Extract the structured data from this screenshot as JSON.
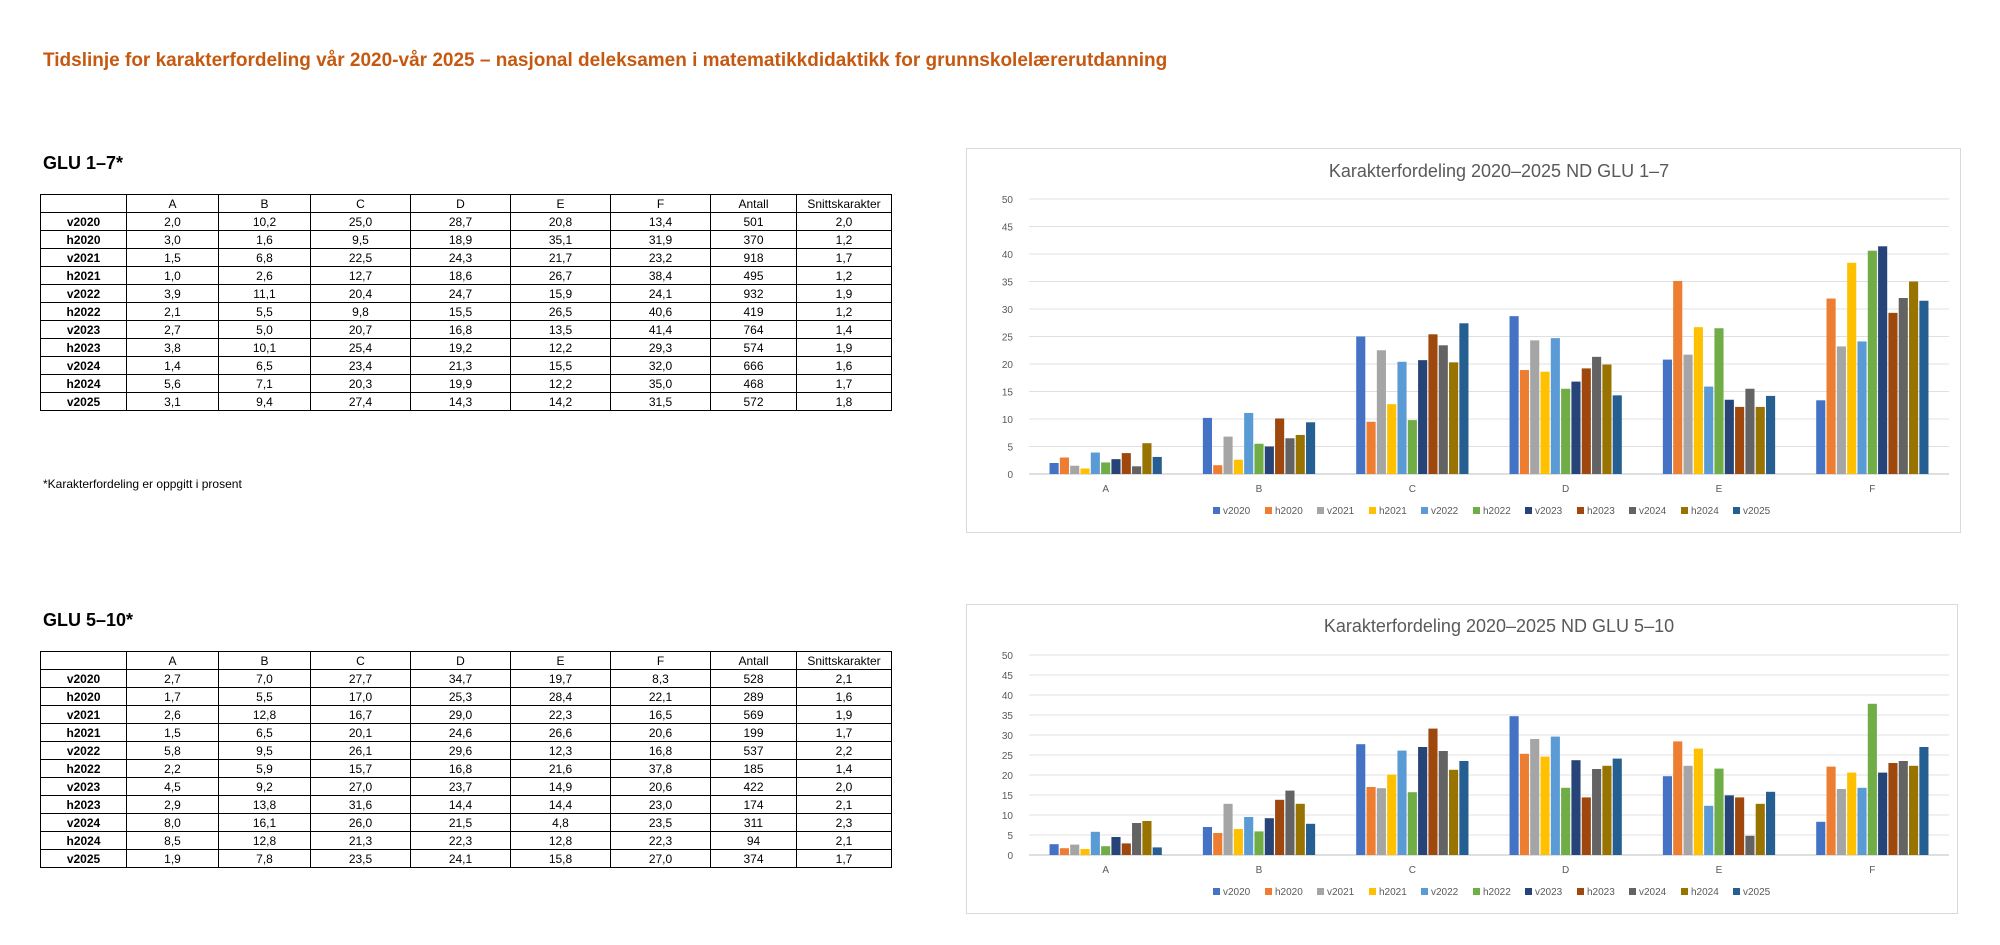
{
  "page": {
    "title": "Tidslinje for karakterfordeling vår 2020-vår 2025 – nasjonal deleksamen i matematikkdidaktikk for grunnskolelærerutdanning",
    "footnote": "*Karakterfordeling er oppgitt i prosent"
  },
  "colors": [
    "#4472c4",
    "#ed7d31",
    "#a5a5a5",
    "#ffc000",
    "#5b9bd5",
    "#70ad47",
    "#264478",
    "#9e480e",
    "#636363",
    "#997300",
    "#255e91"
  ],
  "sections": [
    {
      "title": "GLU 1–7*",
      "table": {
        "headers": [
          "",
          "A",
          "B",
          "C",
          "D",
          "E",
          "F",
          "Antall",
          "Snittskarakter"
        ],
        "rows": [
          [
            "v2020",
            "2,0",
            "10,2",
            "25,0",
            "28,7",
            "20,8",
            "13,4",
            "501",
            "2,0"
          ],
          [
            "h2020",
            "3,0",
            "1,6",
            "9,5",
            "18,9",
            "35,1",
            "31,9",
            "370",
            "1,2"
          ],
          [
            "v2021",
            "1,5",
            "6,8",
            "22,5",
            "24,3",
            "21,7",
            "23,2",
            "918",
            "1,7"
          ],
          [
            "h2021",
            "1,0",
            "2,6",
            "12,7",
            "18,6",
            "26,7",
            "38,4",
            "495",
            "1,2"
          ],
          [
            "v2022",
            "3,9",
            "11,1",
            "20,4",
            "24,7",
            "15,9",
            "24,1",
            "932",
            "1,9"
          ],
          [
            "h2022",
            "2,1",
            "5,5",
            "9,8",
            "15,5",
            "26,5",
            "40,6",
            "419",
            "1,2"
          ],
          [
            "v2023",
            "2,7",
            "5,0",
            "20,7",
            "16,8",
            "13,5",
            "41,4",
            "764",
            "1,4"
          ],
          [
            "h2023",
            "3,8",
            "10,1",
            "25,4",
            "19,2",
            "12,2",
            "29,3",
            "574",
            "1,9"
          ],
          [
            "v2024",
            "1,4",
            "6,5",
            "23,4",
            "21,3",
            "15,5",
            "32,0",
            "666",
            "1,6"
          ],
          [
            "h2024",
            "5,6",
            "7,1",
            "20,3",
            "19,9",
            "12,2",
            "35,0",
            "468",
            "1,7"
          ],
          [
            "v2025",
            "3,1",
            "9,4",
            "27,4",
            "14,3",
            "14,2",
            "31,5",
            "572",
            "1,8"
          ]
        ]
      }
    },
    {
      "title": "GLU 5–10*",
      "table": {
        "headers": [
          "",
          "A",
          "B",
          "C",
          "D",
          "E",
          "F",
          "Antall",
          "Snittskarakter"
        ],
        "rows": [
          [
            "v2020",
            "2,7",
            "7,0",
            "27,7",
            "34,7",
            "19,7",
            "8,3",
            "528",
            "2,1"
          ],
          [
            "h2020",
            "1,7",
            "5,5",
            "17,0",
            "25,3",
            "28,4",
            "22,1",
            "289",
            "1,6"
          ],
          [
            "v2021",
            "2,6",
            "12,8",
            "16,7",
            "29,0",
            "22,3",
            "16,5",
            "569",
            "1,9"
          ],
          [
            "h2021",
            "1,5",
            "6,5",
            "20,1",
            "24,6",
            "26,6",
            "20,6",
            "199",
            "1,7"
          ],
          [
            "v2022",
            "5,8",
            "9,5",
            "26,1",
            "29,6",
            "12,3",
            "16,8",
            "537",
            "2,2"
          ],
          [
            "h2022",
            "2,2",
            "5,9",
            "15,7",
            "16,8",
            "21,6",
            "37,8",
            "185",
            "1,4"
          ],
          [
            "v2023",
            "4,5",
            "9,2",
            "27,0",
            "23,7",
            "14,9",
            "20,6",
            "422",
            "2,0"
          ],
          [
            "h2023",
            "2,9",
            "13,8",
            "31,6",
            "14,4",
            "14,4",
            "23,0",
            "174",
            "2,1"
          ],
          [
            "v2024",
            "8,0",
            "16,1",
            "26,0",
            "21,5",
            "4,8",
            "23,5",
            "311",
            "2,3"
          ],
          [
            "h2024",
            "8,5",
            "12,8",
            "21,3",
            "22,3",
            "12,8",
            "22,3",
            "94",
            "2,1"
          ],
          [
            "v2025",
            "1,9",
            "7,8",
            "23,5",
            "24,1",
            "15,8",
            "27,0",
            "374",
            "1,7"
          ]
        ]
      }
    }
  ],
  "chart_data": [
    {
      "type": "bar",
      "title": "Karakterfordeling 2020–2025 ND GLU 1–7",
      "categories": [
        "A",
        "B",
        "C",
        "D",
        "E",
        "F"
      ],
      "ylim": [
        0,
        50
      ],
      "yticks": [
        0,
        5,
        10,
        15,
        20,
        25,
        30,
        35,
        40,
        45,
        50
      ],
      "grid": true,
      "legend": "bottom",
      "series": [
        {
          "name": "v2020",
          "values": [
            2.0,
            10.2,
            25.0,
            28.7,
            20.8,
            13.4
          ]
        },
        {
          "name": "h2020",
          "values": [
            3.0,
            1.6,
            9.5,
            18.9,
            35.1,
            31.9
          ]
        },
        {
          "name": "v2021",
          "values": [
            1.5,
            6.8,
            22.5,
            24.3,
            21.7,
            23.2
          ]
        },
        {
          "name": "h2021",
          "values": [
            1.0,
            2.6,
            12.7,
            18.6,
            26.7,
            38.4
          ]
        },
        {
          "name": "v2022",
          "values": [
            3.9,
            11.1,
            20.4,
            24.7,
            15.9,
            24.1
          ]
        },
        {
          "name": "h2022",
          "values": [
            2.1,
            5.5,
            9.8,
            15.5,
            26.5,
            40.6
          ]
        },
        {
          "name": "v2023",
          "values": [
            2.7,
            5.0,
            20.7,
            16.8,
            13.5,
            41.4
          ]
        },
        {
          "name": "h2023",
          "values": [
            3.8,
            10.1,
            25.4,
            19.2,
            12.2,
            29.3
          ]
        },
        {
          "name": "v2024",
          "values": [
            1.4,
            6.5,
            23.4,
            21.3,
            15.5,
            32.0
          ]
        },
        {
          "name": "h2024",
          "values": [
            5.6,
            7.1,
            20.3,
            19.9,
            12.2,
            35.0
          ]
        },
        {
          "name": "v2025",
          "values": [
            3.1,
            9.4,
            27.4,
            14.3,
            14.2,
            31.5
          ]
        }
      ]
    },
    {
      "type": "bar",
      "title": "Karakterfordeling 2020–2025 ND GLU 5–10",
      "categories": [
        "A",
        "B",
        "C",
        "D",
        "E",
        "F"
      ],
      "ylim": [
        0,
        50
      ],
      "yticks": [
        0,
        5,
        10,
        15,
        20,
        25,
        30,
        35,
        40,
        45,
        50
      ],
      "grid": true,
      "legend": "bottom",
      "series": [
        {
          "name": "v2020",
          "values": [
            2.7,
            7.0,
            27.7,
            34.7,
            19.7,
            8.3
          ]
        },
        {
          "name": "h2020",
          "values": [
            1.7,
            5.5,
            17.0,
            25.3,
            28.4,
            22.1
          ]
        },
        {
          "name": "v2021",
          "values": [
            2.6,
            12.8,
            16.7,
            29.0,
            22.3,
            16.5
          ]
        },
        {
          "name": "h2021",
          "values": [
            1.5,
            6.5,
            20.1,
            24.6,
            26.6,
            20.6
          ]
        },
        {
          "name": "v2022",
          "values": [
            5.8,
            9.5,
            26.1,
            29.6,
            12.3,
            16.8
          ]
        },
        {
          "name": "h2022",
          "values": [
            2.2,
            5.9,
            15.7,
            16.8,
            21.6,
            37.8
          ]
        },
        {
          "name": "v2023",
          "values": [
            4.5,
            9.2,
            27.0,
            23.7,
            14.9,
            20.6
          ]
        },
        {
          "name": "h2023",
          "values": [
            2.9,
            13.8,
            31.6,
            14.4,
            14.4,
            23.0
          ]
        },
        {
          "name": "v2024",
          "values": [
            8.0,
            16.1,
            26.0,
            21.5,
            4.8,
            23.5
          ]
        },
        {
          "name": "h2024",
          "values": [
            8.5,
            12.8,
            21.3,
            22.3,
            12.8,
            22.3
          ]
        },
        {
          "name": "v2025",
          "values": [
            1.9,
            7.8,
            23.5,
            24.1,
            15.8,
            27.0
          ]
        }
      ]
    }
  ]
}
